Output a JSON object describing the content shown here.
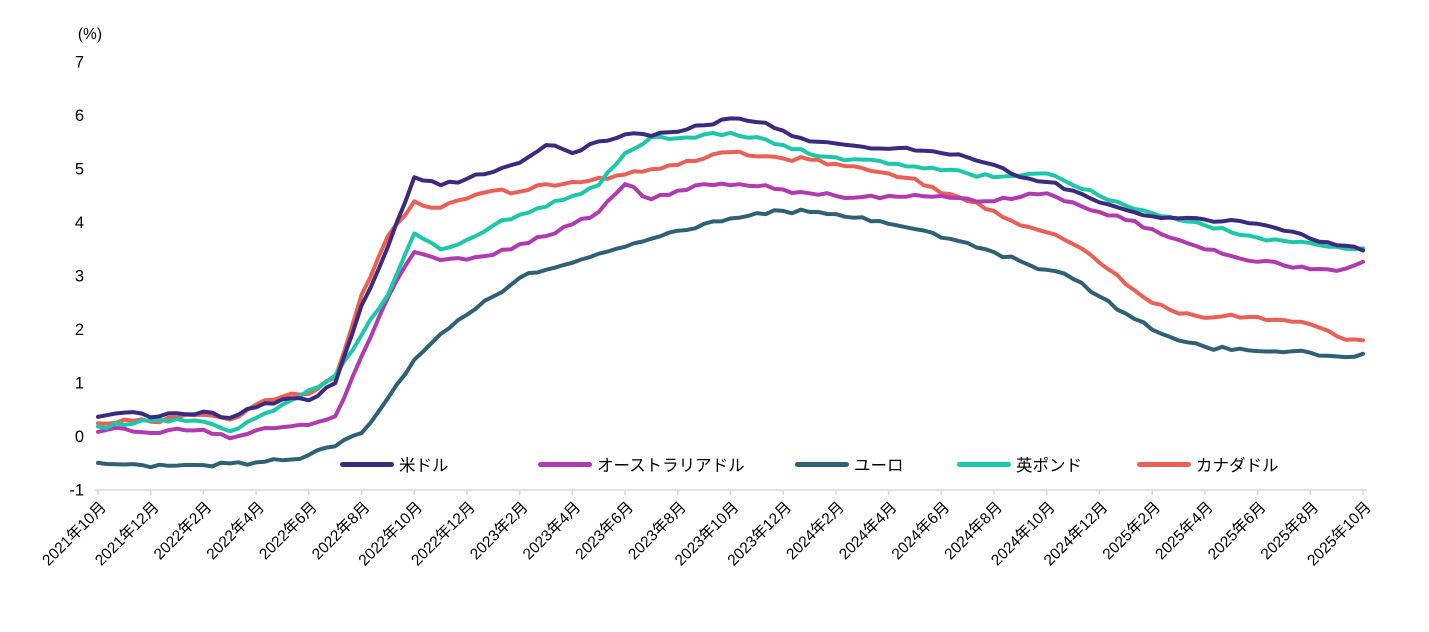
{
  "chart_data": {
    "type": "line",
    "unit_label": "(%)",
    "grid": false,
    "legend_position": "bottom-inside",
    "ylim": [
      -1,
      7
    ],
    "yticks": [
      -1,
      0,
      1,
      2,
      3,
      4,
      5,
      6,
      7
    ],
    "x_tick_labels": [
      "2021年10月",
      "2021年12月",
      "2022年2月",
      "2022年4月",
      "2022年6月",
      "2022年8月",
      "2022年10月",
      "2022年12月",
      "2023年2月",
      "2023年4月",
      "2023年6月",
      "2023年8月",
      "2023年10月",
      "2023年12月",
      "2024年2月",
      "2024年4月",
      "2024年6月",
      "2024年8月",
      "2024年10月",
      "2024年12月",
      "2025年2月",
      "2025年4月",
      "2025年6月",
      "2025年8月",
      "2025年10月"
    ],
    "x_monthly_start": "2021年10月",
    "x_monthly_end": "2025年10月",
    "series": [
      {
        "name": "米ドル",
        "color": "#3b2a7d",
        "values": [
          0.37,
          0.45,
          0.36,
          0.44,
          0.47,
          0.35,
          0.55,
          0.7,
          0.68,
          1.0,
          2.45,
          3.55,
          4.85,
          4.7,
          4.82,
          4.95,
          5.12,
          5.45,
          5.3,
          5.52,
          5.65,
          5.62,
          5.7,
          5.82,
          5.95,
          5.88,
          5.72,
          5.52,
          5.48,
          5.42,
          5.38,
          5.35,
          5.3,
          5.22,
          5.08,
          4.85,
          4.76,
          4.6,
          4.38,
          4.24,
          4.12,
          4.08,
          4.06,
          4.05,
          3.98,
          3.85,
          3.7,
          3.58,
          3.48
        ]
      },
      {
        "name": "オーストラリアドル",
        "color": "#b03ab0",
        "values": [
          0.09,
          0.15,
          0.07,
          0.15,
          0.13,
          -0.03,
          0.12,
          0.18,
          0.22,
          0.38,
          1.5,
          2.6,
          3.45,
          3.3,
          3.31,
          3.4,
          3.6,
          3.75,
          3.97,
          4.2,
          4.72,
          4.44,
          4.6,
          4.72,
          4.7,
          4.68,
          4.62,
          4.55,
          4.5,
          4.48,
          4.5,
          4.52,
          4.5,
          4.45,
          4.4,
          4.48,
          4.55,
          4.38,
          4.2,
          4.05,
          3.88,
          3.68,
          3.5,
          3.38,
          3.27,
          3.2,
          3.13,
          3.1,
          3.27
        ]
      },
      {
        "name": "ユーロ",
        "color": "#2f6175",
        "values": [
          -0.49,
          -0.52,
          -0.57,
          -0.54,
          -0.53,
          -0.5,
          -0.48,
          -0.44,
          -0.34,
          -0.18,
          0.07,
          0.72,
          1.44,
          1.92,
          2.28,
          2.62,
          2.97,
          3.12,
          3.25,
          3.42,
          3.55,
          3.7,
          3.85,
          3.98,
          4.08,
          4.18,
          4.22,
          4.2,
          4.16,
          4.1,
          3.98,
          3.88,
          3.72,
          3.62,
          3.45,
          3.28,
          3.12,
          2.95,
          2.62,
          2.3,
          2.0,
          1.8,
          1.68,
          1.62,
          1.6,
          1.58,
          1.57,
          1.5,
          1.55
        ]
      },
      {
        "name": "英ポンド",
        "color": "#1dc7a9",
        "values": [
          0.19,
          0.22,
          0.3,
          0.33,
          0.28,
          0.1,
          0.35,
          0.6,
          0.87,
          1.15,
          1.9,
          2.65,
          3.8,
          3.5,
          3.68,
          3.95,
          4.15,
          4.3,
          4.5,
          4.7,
          5.3,
          5.6,
          5.58,
          5.65,
          5.68,
          5.6,
          5.45,
          5.28,
          5.22,
          5.18,
          5.1,
          5.05,
          4.98,
          4.92,
          4.85,
          4.88,
          4.92,
          4.7,
          4.5,
          4.32,
          4.18,
          4.05,
          3.95,
          3.82,
          3.72,
          3.66,
          3.62,
          3.55,
          3.52
        ]
      },
      {
        "name": "カナダドル",
        "color": "#ea6054",
        "values": [
          0.25,
          0.32,
          0.28,
          0.36,
          0.41,
          0.32,
          0.6,
          0.75,
          0.8,
          1.1,
          2.65,
          3.75,
          4.4,
          4.28,
          4.45,
          4.6,
          4.58,
          4.72,
          4.76,
          4.84,
          4.9,
          5.0,
          5.08,
          5.2,
          5.32,
          5.24,
          5.2,
          5.18,
          5.1,
          5.02,
          4.92,
          4.82,
          4.55,
          4.4,
          4.22,
          3.95,
          3.82,
          3.6,
          3.25,
          2.85,
          2.5,
          2.3,
          2.22,
          2.28,
          2.24,
          2.18,
          2.1,
          1.88,
          1.8
        ]
      }
    ],
    "axis_color": "#d9d9d9",
    "text_color": "#000000"
  }
}
